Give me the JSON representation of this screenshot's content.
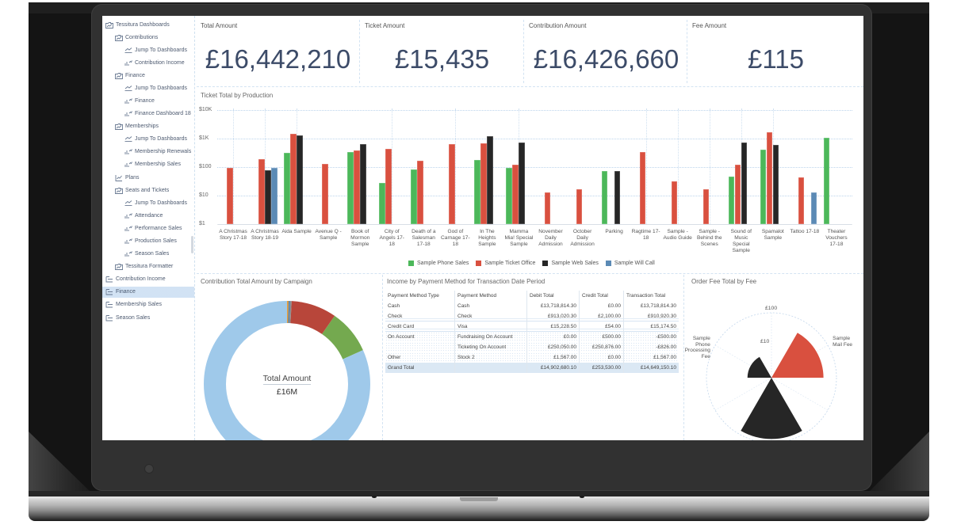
{
  "app": {
    "name": "Tessitura Dashboards"
  },
  "sidebar": {
    "items": [
      {
        "label": "Tessitura Dashboards",
        "level": 0,
        "icon": "folder-chart-icon"
      },
      {
        "label": "Contributions",
        "level": 1,
        "icon": "folder-chart-icon"
      },
      {
        "label": "Jump To Dashboards",
        "level": 2,
        "icon": "jump-icon"
      },
      {
        "label": "Contribution Income",
        "level": 2,
        "icon": "dashboard-icon"
      },
      {
        "label": "Finance",
        "level": 1,
        "icon": "folder-chart-icon"
      },
      {
        "label": "Jump To Dashboards",
        "level": 2,
        "icon": "jump-icon"
      },
      {
        "label": "Finance",
        "level": 2,
        "icon": "dashboard-icon"
      },
      {
        "label": "Finance Dashboard 18",
        "level": 2,
        "icon": "dashboard-icon"
      },
      {
        "label": "Memberships",
        "level": 1,
        "icon": "folder-chart-icon"
      },
      {
        "label": "Jump To Dashboards",
        "level": 2,
        "icon": "jump-icon"
      },
      {
        "label": "Membership Renewals",
        "level": 2,
        "icon": "dashboard-icon"
      },
      {
        "label": "Membership Sales",
        "level": 2,
        "icon": "dashboard-icon"
      },
      {
        "label": "Plans",
        "level": 1,
        "icon": "plan-icon"
      },
      {
        "label": "Seats and Tickets",
        "level": 1,
        "icon": "folder-chart-icon"
      },
      {
        "label": "Jump To Dashboards",
        "level": 2,
        "icon": "jump-icon"
      },
      {
        "label": "Attendance",
        "level": 2,
        "icon": "dashboard-icon"
      },
      {
        "label": "Performance Sales",
        "level": 2,
        "icon": "dashboard-icon"
      },
      {
        "label": "Production Sales",
        "level": 2,
        "icon": "dashboard-icon"
      },
      {
        "label": "Season Sales",
        "level": 2,
        "icon": "dashboard-icon"
      },
      {
        "label": "Tessitura Formatter",
        "level": 1,
        "icon": "folder-chart-icon"
      },
      {
        "label": "Contribution Income",
        "level": 0,
        "icon": "report-icon"
      },
      {
        "label": "Finance",
        "level": 0,
        "icon": "report-icon",
        "selected": true
      },
      {
        "label": "Membership Sales",
        "level": 0,
        "icon": "report-icon"
      },
      {
        "label": "Season Sales",
        "level": 0,
        "icon": "report-icon"
      }
    ]
  },
  "kpis": [
    {
      "label": "Total Amount",
      "value": "£16,442,210"
    },
    {
      "label": "Ticket Amount",
      "value": "£15,435"
    },
    {
      "label": "Contribution Amount",
      "value": "£16,426,660"
    },
    {
      "label": "Fee Amount",
      "value": "£115"
    }
  ],
  "panels": {
    "ticket_chart_title": "Ticket Total by Production",
    "donut_title": "Contribution Total Amount by Campaign",
    "table_title": "Income by Payment Method for Transaction Date Period",
    "polar_title": "Order Fee Total by Fee"
  },
  "table": {
    "columns": [
      "Payment Method Type",
      "Payment Method",
      "Debit Total",
      "Credit Total",
      "Transaction Total"
    ],
    "rows": [
      [
        "Cash",
        "Cash",
        "£13,718,814.30",
        "£0.00",
        "£13,718,814.30"
      ],
      [
        "Check",
        "Check",
        "£913,020.30",
        "£2,100.00",
        "£910,920.30"
      ],
      [
        "Credit Card",
        "Visa",
        "£15,228.50",
        "£54.00",
        "£15,174.50"
      ],
      [
        "On Account",
        "Fundraising On Account",
        "£0.00",
        "£500.00",
        "-£500.00"
      ],
      [
        "",
        "Ticketing On Account",
        "£250,050.00",
        "£250,876.00",
        "-£826.00"
      ],
      [
        "Other",
        "Stock 2",
        "£1,567.00",
        "£0.00",
        "£1,567.00"
      ]
    ],
    "grand_total": [
      "Grand Total",
      "",
      "£14,902,680.10",
      "£253,530.00",
      "£14,649,150.10"
    ]
  },
  "colors": {
    "kpi_value": "#3c4b68",
    "grid": "#bcd4ec",
    "phone_sales": "#4cb85a",
    "ticket_office": "#d9503f",
    "web_sales": "#262626",
    "will_call": "#5b8ab5"
  },
  "chart_data": [
    {
      "type": "bar",
      "title": "Ticket Total by Production",
      "xlabel": "",
      "ylabel": "",
      "yscale": "log",
      "ylim": [
        1,
        10000
      ],
      "y_ticks": [
        {
          "label": "$10K",
          "value": 10000
        },
        {
          "label": "$1K",
          "value": 1000
        },
        {
          "label": "$100",
          "value": 100
        },
        {
          "label": "$10",
          "value": 10
        },
        {
          "label": "$1",
          "value": 1
        }
      ],
      "grid": true,
      "legend_position": "bottom",
      "vgrid_at": [
        0,
        1,
        2,
        5,
        7,
        9,
        13,
        14,
        15,
        16,
        17
      ],
      "categories": [
        "A Christmas Story 17-18",
        "A Christmas Story 18-19",
        "Aida Sample",
        "Avenue Q - Sample",
        "Book of Mormon Sample",
        "City of Angels 17-18",
        "Death of a Salesman 17-18",
        "God of Carnage 17-18",
        "In The Heights Sample",
        "Mamma Mia! Special Sample",
        "November Daily Admission",
        "October Daily Admission",
        "Parking",
        "Ragtime 17-18",
        "Sample - Audio Guide",
        "Sample - Behind the Scenes",
        "Sound of Music Special Sample",
        "Spamalot Sample",
        "Tattoo 17-18",
        "Theater Vouchers 17-18"
      ],
      "series": [
        {
          "name": "Sample Phone Sales",
          "color": "#4cb85a",
          "values": [
            null,
            null,
            316,
            null,
            335,
            28,
            83,
            null,
            178,
            94,
            null,
            null,
            72,
            null,
            null,
            null,
            47,
            410,
            null,
            1070
          ]
        },
        {
          "name": "Sample Ticket Office",
          "color": "#d9503f",
          "values": [
            95,
            190,
            1480,
            130,
            380,
            440,
            165,
            640,
            680,
            120,
            13,
            17,
            null,
            340,
            32,
            17,
            120,
            1650,
            44,
            null
          ]
        },
        {
          "name": "Sample Web Sales",
          "color": "#262626",
          "values": [
            null,
            78,
            1300,
            null,
            650,
            null,
            null,
            null,
            1200,
            720,
            null,
            null,
            73,
            null,
            null,
            null,
            720,
            600,
            null,
            null
          ]
        },
        {
          "name": "Sample Will Call",
          "color": "#5b8ab5",
          "values": [
            null,
            95,
            null,
            null,
            null,
            null,
            null,
            null,
            null,
            null,
            null,
            null,
            null,
            null,
            null,
            null,
            null,
            null,
            13,
            null
          ]
        }
      ]
    },
    {
      "type": "pie",
      "subtype": "donut",
      "title": "Contribution Total Amount by Campaign",
      "center_label": "Total Amount",
      "center_value": "£16M",
      "slices": [
        {
          "color": "#e39b3a",
          "share_pct": 0.3
        },
        {
          "color": "#4f7fae",
          "share_pct": 0.3
        },
        {
          "color": "#8d8d8d",
          "share_pct": 0.3
        },
        {
          "color": "#b8463a",
          "share_pct": 8.8
        },
        {
          "color": "#74a94f",
          "share_pct": 8.6
        },
        {
          "color": "#9fc9ea",
          "share_pct": 81.7
        }
      ]
    },
    {
      "type": "bar",
      "subtype": "polar-column",
      "title": "Order Fee Total by Fee",
      "yscale": "log",
      "r_ticks": [
        {
          "label": "£100",
          "value": 100
        },
        {
          "label": "£10",
          "value": 10
        }
      ],
      "categories": [
        "Sample Mail Fee",
        "",
        "Sample Phone Processing Fee"
      ],
      "angles_deg": [
        60,
        180,
        300
      ],
      "sector_width_deg": 60,
      "values": [
        36,
        75,
        4
      ],
      "colors": [
        "#d9503f",
        "#262626",
        "#262626"
      ]
    }
  ]
}
